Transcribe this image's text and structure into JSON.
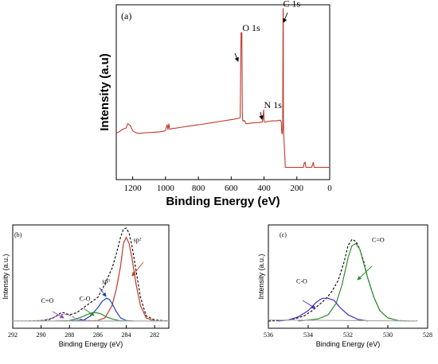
{
  "chart_data": [
    {
      "id": "a",
      "type": "line",
      "panel_label": "(a)",
      "xlabel": "Binding Energy (eV)",
      "ylabel": "Intensity (a.u)",
      "xlim": [
        1300,
        0
      ],
      "ylim": [
        0,
        100
      ],
      "x_reversed": true,
      "xticks": [
        1200,
        1000,
        800,
        600,
        400,
        200,
        0
      ],
      "series": [
        {
          "color": "#c0392b",
          "x": [
            1300,
            1280,
            1260,
            1240,
            1230,
            1215,
            1200,
            1185,
            1170,
            1150,
            1120,
            1080,
            1040,
            1010,
            1000,
            995,
            990,
            985,
            980,
            975,
            970,
            960,
            940,
            900,
            860,
            820,
            780,
            740,
            700,
            660,
            620,
            580,
            560,
            545,
            540,
            535,
            532,
            530,
            528,
            520,
            510,
            500,
            490,
            470,
            450,
            430,
            420,
            410,
            405,
            402,
            400,
            398,
            395,
            390,
            380,
            370,
            350,
            330,
            310,
            300,
            295,
            292,
            289,
            286,
            285,
            284,
            283,
            282,
            280,
            270,
            250,
            230,
            200,
            170,
            160,
            155,
            150,
            145,
            140,
            120,
            110,
            105,
            100,
            95,
            90,
            80,
            60,
            40,
            20,
            0
          ],
          "y": [
            26.5,
            27.5,
            28.8,
            29.5,
            32,
            31,
            28,
            27,
            26.5,
            26.5,
            26.8,
            27,
            27.3,
            27.7,
            28.2,
            30,
            31.5,
            28.5,
            32,
            29,
            28.8,
            29.3,
            29.4,
            30,
            30.6,
            31.1,
            31.6,
            32.2,
            32.8,
            33.4,
            34,
            34.6,
            35,
            35.4,
            84,
            84,
            38,
            34,
            33.5,
            33.8,
            32,
            32,
            32.2,
            32.4,
            32.6,
            32.6,
            32.8,
            33,
            37,
            40,
            34,
            33,
            33,
            33,
            33.2,
            33.4,
            33.6,
            33.6,
            33.8,
            34,
            33,
            27,
            26,
            30,
            64,
            98,
            96,
            34,
            26,
            7,
            7,
            7,
            7,
            7,
            7,
            9.5,
            10,
            7,
            7,
            7,
            7,
            8.5,
            10,
            7,
            7,
            7,
            7,
            7,
            7,
            7
          ]
        }
      ],
      "annotations": [
        {
          "text": "C 1s",
          "x": 284,
          "y": 98
        },
        {
          "text": "O 1s",
          "x": 532,
          "y": 84
        },
        {
          "text": "N 1s",
          "x": 400,
          "y": 40
        }
      ]
    },
    {
      "id": "b",
      "type": "line",
      "panel_label": "(b)",
      "xlabel": "Binding Energy (eV)",
      "ylabel": "Intensity (a.u.)",
      "xlim": [
        292,
        281
      ],
      "ylim": [
        0,
        100
      ],
      "x_reversed": true,
      "xticks": [
        292,
        290,
        288,
        286,
        284,
        282
      ],
      "series": [
        {
          "color": "#000000",
          "style": "dashed",
          "x": [
            292,
            291,
            290,
            289.5,
            289,
            288.6,
            288.4,
            288,
            287.5,
            287,
            286.5,
            286,
            285.6,
            285.3,
            285,
            284.7,
            284.4,
            284.2,
            284,
            283.8,
            283.6,
            283.3,
            283,
            282.6,
            282,
            281
          ],
          "y": [
            7,
            7,
            7.5,
            8,
            11,
            15,
            15,
            13,
            15,
            20,
            25,
            30,
            40,
            49,
            58,
            72,
            88,
            96,
            97,
            92,
            80,
            55,
            30,
            12,
            8,
            7
          ]
        },
        {
          "color": "#c0392b",
          "name": "sp²",
          "x": [
            287,
            286,
            285.5,
            285,
            284.7,
            284.4,
            284.2,
            284,
            283.8,
            283.6,
            283.3,
            283,
            282.6,
            282,
            281
          ],
          "y": [
            7,
            7.5,
            10,
            22,
            38,
            60,
            82,
            88,
            82,
            68,
            42,
            22,
            10,
            7,
            7
          ]
        },
        {
          "color": "#1f3fbf",
          "name": "sp³",
          "x": [
            288,
            287,
            286.5,
            286,
            285.7,
            285.4,
            285.2,
            285,
            284.7,
            284.4,
            284,
            283.5
          ],
          "y": [
            7,
            8,
            12,
            20,
            26,
            29,
            28,
            24,
            16,
            10,
            7.5,
            7
          ]
        },
        {
          "color": "#2e8b2e",
          "name": "C-O",
          "x": [
            289,
            288,
            287.3,
            286.8,
            286.4,
            286.1,
            285.8,
            285.4,
            285,
            284.5,
            284
          ],
          "y": [
            7,
            7.5,
            10,
            13,
            15,
            15,
            14,
            11,
            9,
            7.5,
            7
          ]
        },
        {
          "color": "#8e44ad",
          "style": "dashed",
          "name": "C=O",
          "x": [
            290.5,
            289.8,
            289.2,
            288.8,
            288.5,
            288.3,
            288,
            287.6,
            287,
            286.3
          ],
          "y": [
            7,
            7.8,
            10,
            12.5,
            13.5,
            13.5,
            12.5,
            10,
            8,
            7
          ]
        },
        {
          "color": "#aaaaaa",
          "name": "baseline",
          "x": [
            292,
            281
          ],
          "y": [
            7,
            7
          ]
        }
      ],
      "annotations": [
        {
          "text": "sp²",
          "x": 283.5,
          "y": 82
        },
        {
          "text": "sp³",
          "x": 285.7,
          "y": 42
        },
        {
          "text": "C-O",
          "x": 287.3,
          "y": 25
        },
        {
          "text": "C=O",
          "x": 290,
          "y": 23
        }
      ]
    },
    {
      "id": "c",
      "type": "line",
      "panel_label": "(c)",
      "xlabel": "Binding Energy (eV)",
      "ylabel": "Intensity (a.u.)",
      "xlim": [
        536,
        528
      ],
      "ylim": [
        0,
        100
      ],
      "x_reversed": true,
      "xticks": [
        536,
        534,
        532,
        530,
        528
      ],
      "series": [
        {
          "color": "#000000",
          "style": "dashed",
          "x": [
            536,
            535.5,
            535,
            534.6,
            534.2,
            533.8,
            533.5,
            533.2,
            533,
            532.8,
            532.5,
            532.2,
            532,
            531.8,
            531.6,
            531.4,
            531.2,
            531,
            530.7,
            530.4,
            530,
            529.5,
            529,
            528.5
          ],
          "y": [
            7,
            7.3,
            8,
            9.5,
            12,
            17,
            22,
            27,
            31,
            36,
            46,
            64,
            80,
            86,
            84,
            76,
            64,
            48,
            30,
            17,
            10,
            7.5,
            7,
            7
          ]
        },
        {
          "color": "#2e8b2e",
          "name": "C=O",
          "x": [
            534.5,
            533.5,
            533,
            532.6,
            532.3,
            532,
            531.8,
            531.6,
            531.4,
            531.2,
            531,
            530.7,
            530.4,
            530,
            529.5,
            529
          ],
          "y": [
            7,
            9,
            13,
            24,
            42,
            68,
            80,
            82,
            76,
            62,
            48,
            30,
            17,
            10,
            7.5,
            7
          ]
        },
        {
          "color": "#4b2bbf",
          "name": "C-O",
          "x": [
            535.5,
            535,
            534.5,
            534,
            533.6,
            533.3,
            533,
            532.7,
            532.4,
            532,
            531.5,
            531
          ],
          "y": [
            7,
            8,
            11,
            17,
            25,
            29,
            29,
            27,
            20,
            13,
            8.5,
            7
          ]
        },
        {
          "color": "#aaaaaa",
          "name": "baseline",
          "x": [
            536,
            531,
            528.5
          ],
          "y": [
            8,
            7.3,
            7
          ]
        }
      ],
      "annotations": [
        {
          "text": "C=O",
          "x": 530.8,
          "y": 82
        },
        {
          "text": "C-O",
          "x": 534.6,
          "y": 42
        }
      ]
    }
  ]
}
